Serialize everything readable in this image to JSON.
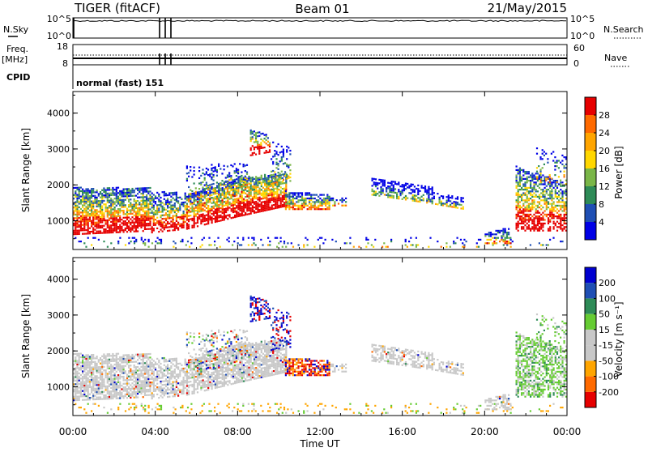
{
  "header": {
    "title": "TIGER (fitACF)",
    "beam": "Beam 01",
    "date": "21/May/2015"
  },
  "panels": {
    "nsky": {
      "label": "N.Sky",
      "tick_top": "10^5",
      "tick_bottom": "10^0",
      "right_label": "N.Search",
      "right_tick_top": "10^5",
      "right_tick_bottom": "10^0"
    },
    "freq": {
      "label_line1": "Freq.",
      "label_line2": "[MHz]",
      "tick_top": "18",
      "tick_bottom": "8",
      "right_label": "Nave",
      "right_tick_top": "60",
      "right_tick_bottom": "0"
    },
    "cpid": {
      "label": "CPID",
      "text": "normal (fast) 151"
    }
  },
  "colors": {
    "power_scale": [
      "#0000e6",
      "#1f4fb4",
      "#2e8b57",
      "#7ab648",
      "#ffd700",
      "#ffa500",
      "#ff6a00",
      "#e60000"
    ],
    "velocity_scale": [
      "#e60000",
      "#ff6a00",
      "#ffa500",
      "#c8c8c8",
      "#c8c8c8",
      "#66cc33",
      "#2e8b57",
      "#1f4fb4",
      "#0000d0"
    ],
    "ground_gray": "#c8c8c8"
  },
  "chart_data": [
    {
      "type": "heatmap",
      "name": "power",
      "ylabel": "Slant Range [km]",
      "yticks": [
        "1000",
        "2000",
        "3000",
        "4000"
      ],
      "ylim": [
        200,
        4600
      ],
      "xlim": [
        0,
        24
      ],
      "colorbar_label": "Power [dB]",
      "colorbar_ticks": [
        "4",
        "8",
        "12",
        "16",
        "20",
        "24",
        "28"
      ],
      "grid": false
    },
    {
      "type": "heatmap",
      "name": "velocity",
      "ylabel": "Slant Range [km]",
      "yticks": [
        "1000",
        "2000",
        "3000",
        "4000"
      ],
      "ylim": [
        200,
        4600
      ],
      "xlim": [
        0,
        24
      ],
      "colorbar_label": "Velocity [m s⁻¹]",
      "colorbar_ticks": [
        "-200",
        "-100",
        "-50",
        "-15",
        "15",
        "50",
        "100",
        "200"
      ],
      "grid": false
    }
  ],
  "xaxis": {
    "ticks": [
      "00:00",
      "04:00",
      "08:00",
      "12:00",
      "16:00",
      "20:00",
      "00:00"
    ],
    "label": "Time UT"
  }
}
